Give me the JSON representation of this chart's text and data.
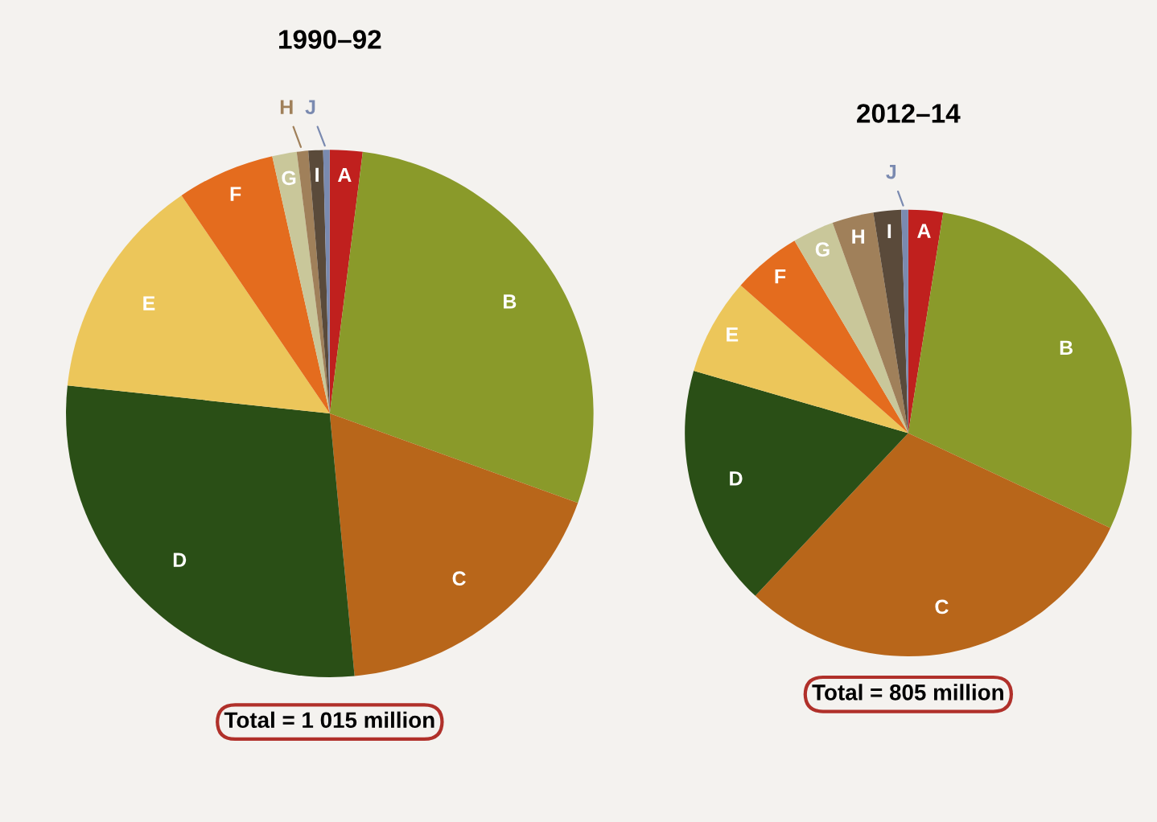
{
  "chart_data": [
    {
      "type": "pie",
      "title": "1990–92",
      "categories": [
        "A",
        "B",
        "C",
        "D",
        "E",
        "F",
        "G",
        "H",
        "I",
        "J"
      ],
      "values": [
        2,
        28.5,
        18,
        28.2,
        13.8,
        6,
        1.5,
        0.7,
        0.9,
        0.4
      ],
      "colors": [
        "#c0201e",
        "#8a9a2a",
        "#b8661a",
        "#2a4f16",
        "#ecc65a",
        "#e46c1e",
        "#c9c79a",
        "#a0805a",
        "#5a4a3a",
        "#7a8ab0"
      ],
      "annotations": [
        "Total = 1 015 million"
      ]
    },
    {
      "type": "pie",
      "title": "2012–14",
      "categories": [
        "A",
        "B",
        "C",
        "D",
        "E",
        "F",
        "G",
        "H",
        "I",
        "J"
      ],
      "values": [
        2.5,
        29.5,
        30,
        17.5,
        7,
        5,
        3,
        3,
        2,
        0.5
      ],
      "colors": [
        "#c0201e",
        "#8a9a2a",
        "#b8661a",
        "#2a4f16",
        "#ecc65a",
        "#e46c1e",
        "#c9c79a",
        "#a0805a",
        "#5a4a3a",
        "#7a8ab0"
      ],
      "annotations": [
        "Total = 805 million"
      ]
    }
  ]
}
